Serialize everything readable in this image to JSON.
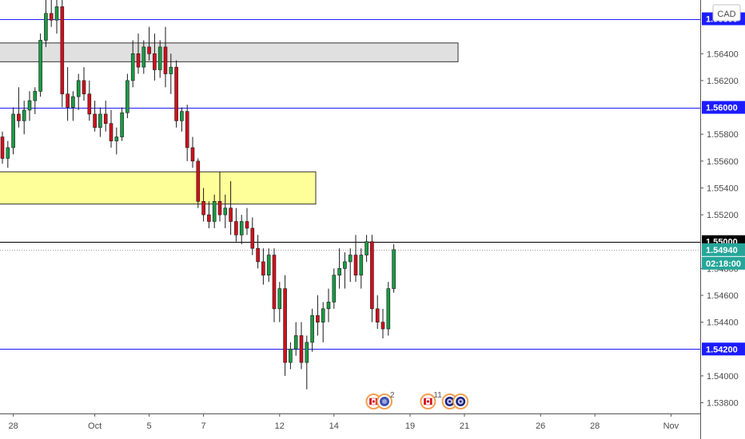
{
  "chart_data": {
    "type": "candlestick",
    "currency_label": "CAD",
    "ylim": [
      1.5372,
      1.568
    ],
    "y_ticks": [
      "1.53800",
      "1.54000",
      "1.54400",
      "1.54600",
      "1.54800",
      "1.55200",
      "1.55400",
      "1.55600",
      "1.55800",
      "1.56200",
      "1.56400"
    ],
    "x_ticks": [
      "28",
      "Oct",
      "5",
      "7",
      "12",
      "14",
      "19",
      "21",
      "26",
      "28",
      "Nov"
    ],
    "horizontal_levels": [
      {
        "price": 1.5666,
        "label": "1.56600",
        "color": "#1c1cff",
        "style": "solid",
        "label_bg": "#1c1cff"
      },
      {
        "price": 1.56,
        "label": "1.56000",
        "color": "#1c1cff",
        "style": "solid",
        "label_bg": "#1c1cff"
      },
      {
        "price": 1.55,
        "label": "1.55000",
        "color": "#000000",
        "style": "solid",
        "label_bg": "#000000"
      },
      {
        "price": 1.542,
        "label": "1.54200",
        "color": "#1c1cff",
        "style": "solid",
        "label_bg": "#1c1cff"
      }
    ],
    "current_price": {
      "value": 1.5494,
      "label": "1.54940",
      "countdown": "02:18:00",
      "color": "#26a69a"
    },
    "zones": [
      {
        "from": 1.5634,
        "to": 1.5648,
        "color": "#e0e0e0",
        "border": "#333333"
      },
      {
        "from": 1.5528,
        "to": 1.5552,
        "color": "#ffff99",
        "border": "#333333"
      }
    ],
    "candles": [
      [
        1.5578,
        1.5582,
        1.5558,
        1.5562
      ],
      [
        1.5562,
        1.5575,
        1.5555,
        1.557
      ],
      [
        1.557,
        1.56,
        1.5565,
        1.5595
      ],
      [
        1.5595,
        1.5615,
        1.5585,
        1.559
      ],
      [
        1.559,
        1.5605,
        1.558,
        1.5598
      ],
      [
        1.5598,
        1.5612,
        1.559,
        1.5605
      ],
      [
        1.5605,
        1.5615,
        1.5595,
        1.5612
      ],
      [
        1.5612,
        1.5655,
        1.5608,
        1.565
      ],
      [
        1.565,
        1.568,
        1.5645,
        1.567
      ],
      [
        1.567,
        1.568,
        1.566,
        1.5665
      ],
      [
        1.5665,
        1.569,
        1.5655,
        1.5675
      ],
      [
        1.5675,
        1.57,
        1.56,
        1.561
      ],
      [
        1.561,
        1.563,
        1.559,
        1.56
      ],
      [
        1.56,
        1.5612,
        1.559,
        1.5608
      ],
      [
        1.5608,
        1.5625,
        1.5598,
        1.562
      ],
      [
        1.562,
        1.563,
        1.5605,
        1.561
      ],
      [
        1.561,
        1.562,
        1.559,
        1.5595
      ],
      [
        1.5595,
        1.5605,
        1.5582,
        1.5585
      ],
      [
        1.5585,
        1.56,
        1.5578,
        1.5595
      ],
      [
        1.5595,
        1.5605,
        1.5582,
        1.5588
      ],
      [
        1.5588,
        1.5598,
        1.557,
        1.5575
      ],
      [
        1.5575,
        1.5585,
        1.5565,
        1.5578
      ],
      [
        1.5578,
        1.56,
        1.5575,
        1.5596
      ],
      [
        1.5596,
        1.5625,
        1.5592,
        1.562
      ],
      [
        1.562,
        1.565,
        1.5615,
        1.564
      ],
      [
        1.564,
        1.5655,
        1.5625,
        1.563
      ],
      [
        1.563,
        1.565,
        1.5625,
        1.5645
      ],
      [
        1.5645,
        1.566,
        1.5635,
        1.564
      ],
      [
        1.564,
        1.5655,
        1.562,
        1.5628
      ],
      [
        1.5628,
        1.565,
        1.5622,
        1.5645
      ],
      [
        1.5645,
        1.566,
        1.5615,
        1.5625
      ],
      [
        1.5625,
        1.564,
        1.561,
        1.563
      ],
      [
        1.563,
        1.5635,
        1.5585,
        1.559
      ],
      [
        1.559,
        1.56,
        1.5582,
        1.5597
      ],
      [
        1.5597,
        1.5602,
        1.556,
        1.557
      ],
      [
        1.557,
        1.5578,
        1.5555,
        1.556
      ],
      [
        1.556,
        1.5562,
        1.5525,
        1.553
      ],
      [
        1.553,
        1.554,
        1.5515,
        1.552
      ],
      [
        1.552,
        1.553,
        1.551,
        1.5515
      ],
      [
        1.5515,
        1.5535,
        1.551,
        1.553
      ],
      [
        1.553,
        1.5552,
        1.5515,
        1.552
      ],
      [
        1.552,
        1.5535,
        1.551,
        1.5525
      ],
      [
        1.5525,
        1.5545,
        1.5505,
        1.5515
      ],
      [
        1.5515,
        1.5525,
        1.55,
        1.5505
      ],
      [
        1.5505,
        1.552,
        1.5498,
        1.5515
      ],
      [
        1.5515,
        1.5525,
        1.5505,
        1.551
      ],
      [
        1.551,
        1.5518,
        1.549,
        1.5495
      ],
      [
        1.5495,
        1.5505,
        1.548,
        1.5485
      ],
      [
        1.5485,
        1.5495,
        1.5468,
        1.5475
      ],
      [
        1.5475,
        1.5495,
        1.547,
        1.549
      ],
      [
        1.549,
        1.5495,
        1.544,
        1.545
      ],
      [
        1.545,
        1.547,
        1.544,
        1.5465
      ],
      [
        1.5465,
        1.5475,
        1.54,
        1.541
      ],
      [
        1.541,
        1.5425,
        1.5405,
        1.542
      ],
      [
        1.542,
        1.544,
        1.5415,
        1.543
      ],
      [
        1.543,
        1.544,
        1.5405,
        1.541
      ],
      [
        1.541,
        1.543,
        1.539,
        1.5425
      ],
      [
        1.5425,
        1.545,
        1.5418,
        1.5445
      ],
      [
        1.5445,
        1.546,
        1.543,
        1.544
      ],
      [
        1.544,
        1.5455,
        1.5425,
        1.545
      ],
      [
        1.545,
        1.5465,
        1.544,
        1.5455
      ],
      [
        1.5455,
        1.548,
        1.545,
        1.5475
      ],
      [
        1.5475,
        1.5495,
        1.5465,
        1.548
      ],
      [
        1.548,
        1.5492,
        1.5465,
        1.5485
      ],
      [
        1.5485,
        1.5495,
        1.547,
        1.549
      ],
      [
        1.549,
        1.5505,
        1.547,
        1.5475
      ],
      [
        1.5475,
        1.5495,
        1.5465,
        1.549
      ],
      [
        1.549,
        1.5505,
        1.5485,
        1.55
      ],
      [
        1.55,
        1.5505,
        1.544,
        1.545
      ],
      [
        1.545,
        1.546,
        1.5435,
        1.544
      ],
      [
        1.544,
        1.545,
        1.5428,
        1.5435
      ],
      [
        1.5435,
        1.547,
        1.543,
        1.5465
      ],
      [
        1.5465,
        1.5498,
        1.5462,
        1.5494
      ]
    ],
    "event_icons": [
      {
        "icon": "canada-flag-icon",
        "index": 68
      },
      {
        "icon": "globe-icon",
        "index": 70,
        "count": "2"
      },
      {
        "icon": "canada-flag-icon",
        "index": 78,
        "count": "11"
      },
      {
        "icon": "us-seal-icon",
        "index": 82
      },
      {
        "icon": "us-seal-icon",
        "index": 84
      }
    ]
  }
}
